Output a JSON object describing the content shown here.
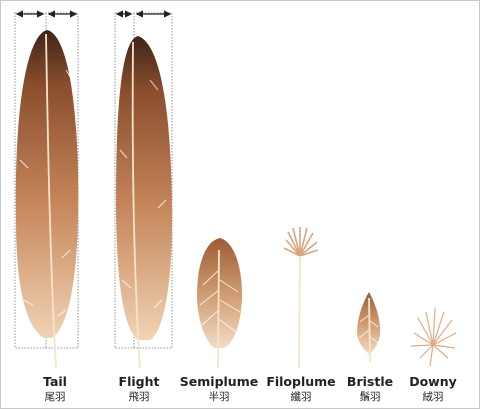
{
  "feathers": [
    {
      "name": "Tail",
      "name_zh": "尾羽"
    },
    {
      "name": "Flight",
      "name_zh": "飛羽"
    },
    {
      "name": "Semiplume",
      "name_zh": "半羽"
    },
    {
      "name": "Filoplume",
      "name_zh": "纖羽"
    },
    {
      "name": "Bristle",
      "name_zh": "鬚羽"
    },
    {
      "name": "Downy",
      "name_zh": "絨羽"
    }
  ]
}
